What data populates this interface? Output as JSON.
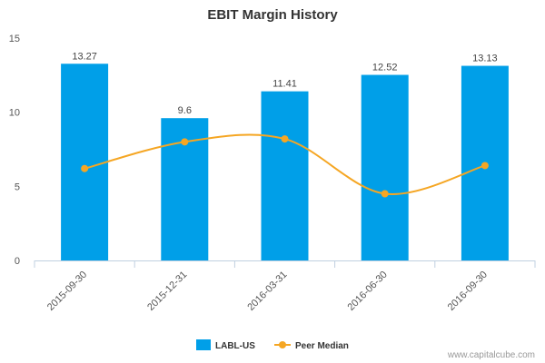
{
  "chart_data": {
    "type": "bar",
    "title": "EBIT Margin History",
    "categories": [
      "2015-09-30",
      "2015-12-31",
      "2016-03-31",
      "2016-06-30",
      "2016-09-30"
    ],
    "series": [
      {
        "name": "LABL-US",
        "type": "bar",
        "color": "#009fe8",
        "values": [
          13.27,
          9.6,
          11.41,
          12.52,
          13.13
        ],
        "labels": [
          "13.27",
          "9.6",
          "11.41",
          "12.52",
          "13.13"
        ]
      },
      {
        "name": "Peer Median",
        "type": "line",
        "color": "#f5a623",
        "values": [
          6.2,
          8.0,
          8.2,
          4.5,
          6.4
        ]
      }
    ],
    "yticks": [
      "0",
      "5",
      "10",
      "15"
    ],
    "ylim": [
      0,
      15
    ],
    "xlabel": "",
    "ylabel": "",
    "legend": "bottom-center",
    "grid": false
  },
  "credit": "www.capitalcube.com"
}
